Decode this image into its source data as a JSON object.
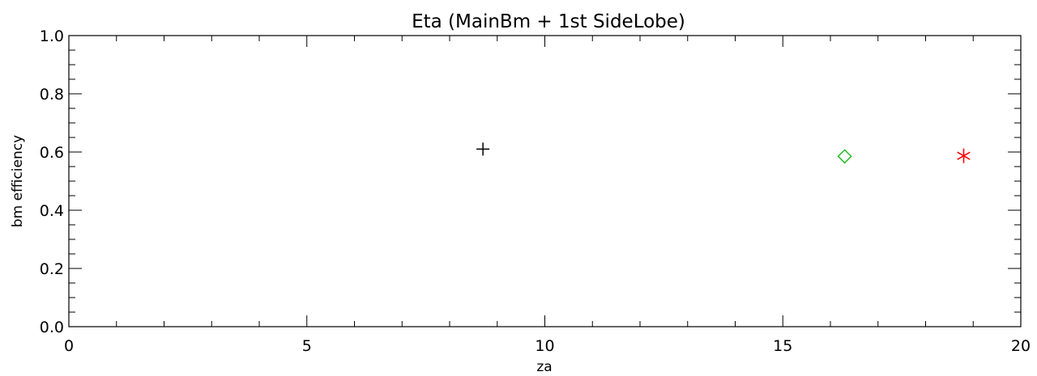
{
  "chart_data": {
    "type": "scatter",
    "title": "Eta (MainBm + 1st SideLobe)",
    "xlabel": "za",
    "ylabel": "bm efficiency",
    "xlim": [
      0,
      20
    ],
    "ylim": [
      0.0,
      1.0
    ],
    "x_ticks": [
      "0",
      "5",
      "10",
      "15",
      "20"
    ],
    "y_ticks": [
      "0.0",
      "0.2",
      "0.4",
      "0.6",
      "0.8",
      "1.0"
    ],
    "grid": false,
    "legend": "none",
    "points": [
      {
        "x": 8.7,
        "y": 0.61,
        "marker": "plus",
        "color": "#000000"
      },
      {
        "x": 16.3,
        "y": 0.585,
        "marker": "diamond",
        "color": "#22b922"
      },
      {
        "x": 18.8,
        "y": 0.587,
        "marker": "asterisk",
        "color": "#ff0000"
      }
    ]
  }
}
